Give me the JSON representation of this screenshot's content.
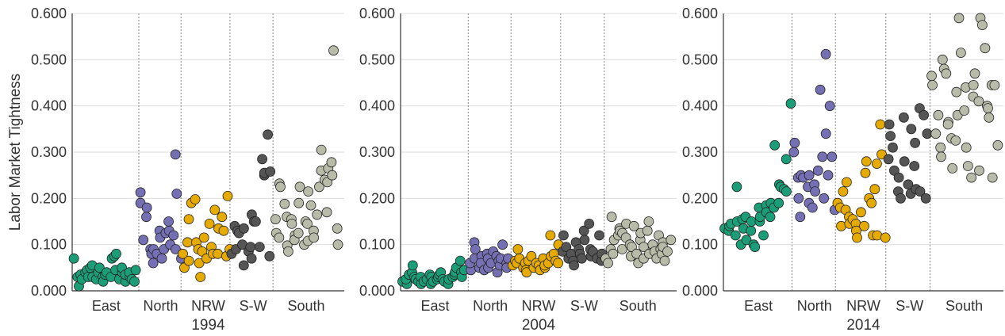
{
  "chart_data": {
    "type": "scatter",
    "ylabel": "Labor Market Tightness",
    "ylim": [
      0,
      0.6
    ],
    "yticks": [
      "0.000",
      "0.100",
      "0.200",
      "0.300",
      "0.400",
      "0.500",
      "0.600"
    ],
    "grid": "horizontal",
    "region_colors": {
      "East": "#1b9e77",
      "North": "#7570b3",
      "NRW": "#e6ab02",
      "S-W": "#555555",
      "South": "#b8bba8"
    },
    "panels": [
      {
        "year": "1994",
        "regions": [
          {
            "name": "East",
            "values": [
              0.07,
              0.03,
              0.01,
              0.035,
              0.025,
              0.04,
              0.045,
              0.03,
              0.05,
              0.055,
              0.03,
              0.025,
              0.04,
              0.05,
              0.03,
              0.02,
              0.035,
              0.04,
              0.03,
              0.07,
              0.075,
              0.08,
              0.045,
              0.025,
              0.04,
              0.05,
              0.02,
              0.035,
              0.03,
              0.04,
              0.025,
              0.02,
              0.045
            ]
          },
          {
            "name": "North",
            "values": [
              0.19,
              0.213,
              0.11,
              0.18,
              0.16,
              0.09,
              0.08,
              0.09,
              0.06,
              0.08,
              0.13,
              0.115,
              0.07,
              0.09,
              0.125,
              0.15,
              0.1,
              0.13,
              0.12,
              0.09,
              0.295,
              0.21,
              0.07
            ]
          },
          {
            "name": "NRW",
            "values": [
              0.08,
              0.05,
              0.105,
              0.065,
              0.155,
              0.19,
              0.198,
              0.105,
              0.06,
              0.09,
              0.03,
              0.085,
              0.115,
              0.07,
              0.145,
              0.095,
              0.08,
              0.175,
              0.135,
              0.08,
              0.16,
              0.13,
              0.075,
              0.205,
              0.09
            ]
          },
          {
            "name": "S-W",
            "values": [
              0.08,
              0.14,
              0.09,
              0.13,
              0.125,
              0.1,
              0.055,
              0.135,
              0.085,
              0.095,
              0.07,
              0.165,
              0.15,
              0.15,
              0.095,
              0.285,
              0.25,
              0.255,
              0.338,
              0.258,
              0.075
            ]
          },
          {
            "name": "South",
            "values": [
              0.155,
              0.125,
              0.115,
              0.232,
              0.225,
              0.188,
              0.16,
              0.098,
              0.085,
              0.155,
              0.145,
              0.12,
              0.11,
              0.19,
              0.125,
              0.225,
              0.1,
              0.15,
              0.145,
              0.108,
              0.215,
              0.185,
              0.13,
              0.115,
              0.165,
              0.225,
              0.26,
              0.305,
              0.24,
              0.17,
              0.235,
              0.265,
              0.278,
              0.25,
              0.52,
              0.135,
              0.1
            ]
          }
        ]
      },
      {
        "year": "2004",
        "regions": [
          {
            "name": "East",
            "values": [
              0.02,
              0.015,
              0.025,
              0.035,
              0.04,
              0.055,
              0.03,
              0.025,
              0.02,
              0.03,
              0.015,
              0.02,
              0.025,
              0.035,
              0.03,
              0.015,
              0.02,
              0.025,
              0.03,
              0.035,
              0.04,
              0.025,
              0.02,
              0.015,
              0.025,
              0.03,
              0.035,
              0.04,
              0.05,
              0.065,
              0.04,
              0.03,
              0.045
            ]
          },
          {
            "name": "North",
            "values": [
              0.045,
              0.06,
              0.07,
              0.105,
              0.09,
              0.05,
              0.075,
              0.06,
              0.045,
              0.08,
              0.07,
              0.05,
              0.06,
              0.085,
              0.075,
              0.04,
              0.065,
              0.055,
              0.07,
              0.1,
              0.06,
              0.05,
              0.07
            ]
          },
          {
            "name": "NRW",
            "values": [
              0.055,
              0.065,
              0.06,
              0.09,
              0.07,
              0.05,
              0.06,
              0.045,
              0.04,
              0.065,
              0.075,
              0.05,
              0.06,
              0.055,
              0.045,
              0.07,
              0.05,
              0.055,
              0.06,
              0.12,
              0.075,
              0.08,
              0.065,
              0.1,
              0.06
            ]
          },
          {
            "name": "S-W",
            "values": [
              0.085,
              0.12,
              0.095,
              0.07,
              0.08,
              0.065,
              0.055,
              0.105,
              0.09,
              0.08,
              0.07,
              0.13,
              0.11,
              0.145,
              0.09,
              0.075,
              0.085,
              0.07,
              0.12,
              0.065,
              0.08
            ]
          },
          {
            "name": "South",
            "values": [
              0.07,
              0.06,
              0.09,
              0.16,
              0.08,
              0.11,
              0.12,
              0.135,
              0.13,
              0.09,
              0.125,
              0.115,
              0.145,
              0.1,
              0.075,
              0.095,
              0.14,
              0.08,
              0.06,
              0.11,
              0.125,
              0.07,
              0.095,
              0.13,
              0.08,
              0.15,
              0.1,
              0.085,
              0.07,
              0.12,
              0.09,
              0.08,
              0.105,
              0.095,
              0.065,
              0.085,
              0.11
            ]
          }
        ]
      },
      {
        "year": "2014",
        "regions": [
          {
            "name": "East",
            "values": [
              0.135,
              0.13,
              0.14,
              0.145,
              0.12,
              0.225,
              0.15,
              0.1,
              0.135,
              0.155,
              0.16,
              0.11,
              0.13,
              0.15,
              0.1,
              0.095,
              0.18,
              0.15,
              0.16,
              0.12,
              0.185,
              0.17,
              0.19,
              0.16,
              0.18,
              0.315,
              0.19,
              0.23,
              0.225,
              0.22,
              0.215,
              0.285,
              0.405
            ]
          },
          {
            "name": "North",
            "values": [
              0.3,
              0.32,
              0.245,
              0.2,
              0.16,
              0.25,
              0.245,
              0.225,
              0.19,
              0.25,
              0.18,
              0.23,
              0.215,
              0.26,
              0.435,
              0.29,
              0.2,
              0.512,
              0.34,
              0.25,
              0.4,
              0.29,
              0.175
            ]
          },
          {
            "name": "NRW",
            "values": [
              0.19,
              0.18,
              0.14,
              0.215,
              0.175,
              0.235,
              0.16,
              0.145,
              0.155,
              0.145,
              0.13,
              0.115,
              0.17,
              0.14,
              0.255,
              0.28,
              0.2,
              0.19,
              0.12,
              0.22,
              0.275,
              0.12,
              0.36,
              0.295,
              0.115
            ]
          },
          {
            "name": "S-W",
            "values": [
              0.285,
              0.36,
              0.335,
              0.31,
              0.26,
              0.245,
              0.215,
              0.2,
              0.375,
              0.28,
              0.23,
              0.21,
              0.35,
              0.32,
              0.27,
              0.22,
              0.395,
              0.215,
              0.38,
              0.2,
              0.34
            ]
          },
          {
            "name": "South",
            "values": [
              0.465,
              0.445,
              0.34,
              0.38,
              0.31,
              0.29,
              0.5,
              0.48,
              0.47,
              0.365,
              0.36,
              0.265,
              0.33,
              0.325,
              0.38,
              0.43,
              0.59,
              0.515,
              0.39,
              0.44,
              0.31,
              0.27,
              0.245,
              0.42,
              0.445,
              0.47,
              0.41,
              0.26,
              0.59,
              0.575,
              0.525,
              0.4,
              0.395,
              0.375,
              0.245,
              0.445,
              0.445,
              0.315
            ]
          }
        ]
      }
    ]
  }
}
